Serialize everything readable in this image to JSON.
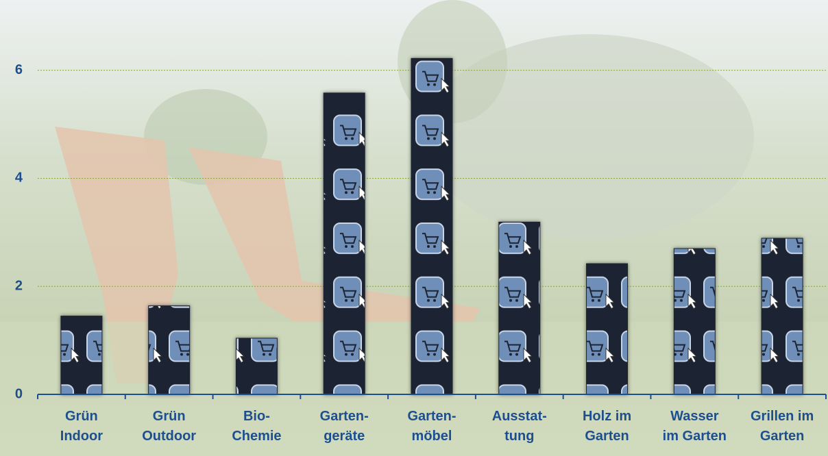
{
  "chart_data": {
    "type": "bar",
    "categories": [
      "Grün\nIndoor",
      "Grün\nOutdoor",
      "Bio-\nChemie",
      "Garten-\ngeräte",
      "Garten-\nmöbel",
      "Ausstat-\ntung",
      "Holz im\nGarten",
      "Wasser\nim Garten",
      "Grillen im\nGarten"
    ],
    "values": [
      1.45,
      1.64,
      1.04,
      5.58,
      6.22,
      3.19,
      2.42,
      2.7,
      2.89
    ],
    "color": "#1c2333",
    "ylim": [
      0,
      7.2
    ],
    "yticks": [
      0,
      2,
      4,
      6
    ],
    "grid": true
  }
}
